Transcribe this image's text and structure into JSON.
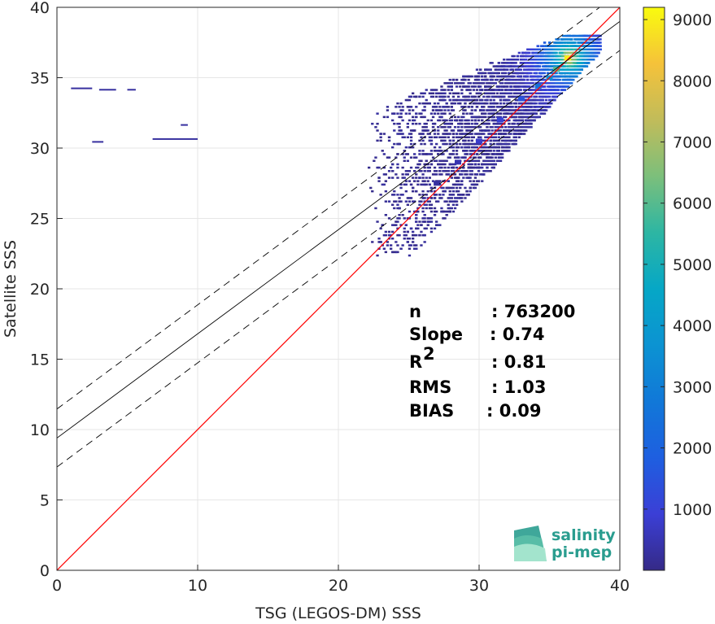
{
  "chart_data": {
    "type": "heatmap",
    "title": "",
    "xlabel": "TSG (LEGOS-DM) SSS",
    "ylabel": "Satellite SSS",
    "xlim": [
      0,
      40
    ],
    "ylim": [
      0,
      40
    ],
    "xticks": [
      "0",
      "10",
      "20",
      "30",
      "40"
    ],
    "yticks": [
      "0",
      "5",
      "10",
      "15",
      "20",
      "25",
      "30",
      "35",
      "40"
    ],
    "grid": true,
    "colorbar": {
      "range": [
        0,
        9200
      ],
      "ticks": [
        "1000",
        "2000",
        "3000",
        "4000",
        "5000",
        "6000",
        "7000",
        "8000",
        "9000"
      ],
      "colormap": "parula"
    },
    "reference_line": {
      "name": "1:1",
      "color": "#ff0000",
      "slope": 1,
      "intercept": 0
    },
    "fit_line": {
      "slope": 0.74,
      "intercept": 9.4,
      "color": "#000000"
    },
    "fit_bounds": {
      "offset": 2.06,
      "style": "dashed",
      "color": "#000000"
    },
    "density_clusters": [
      {
        "x": 36.3,
        "y": 36.4,
        "count": 9000
      },
      {
        "x": 35.5,
        "y": 35.6,
        "count": 6000
      },
      {
        "x": 35.0,
        "y": 35.0,
        "count": 3500
      },
      {
        "x": 34.2,
        "y": 34.4,
        "count": 2500
      },
      {
        "x": 33.0,
        "y": 33.5,
        "count": 1500
      },
      {
        "x": 31.5,
        "y": 32.0,
        "count": 1000
      },
      {
        "x": 30.0,
        "y": 30.5,
        "count": 800
      },
      {
        "x": 28.5,
        "y": 29.0,
        "count": 500
      },
      {
        "x": 27.0,
        "y": 27.5,
        "count": 300
      }
    ],
    "stats": [
      {
        "label": "n",
        "value": ": 763200"
      },
      {
        "label": "Slope",
        "value": ": 0.74"
      },
      {
        "label": "R",
        "sup": "2",
        "value": ": 0.81"
      },
      {
        "label": "RMS",
        "value": ": 1.03"
      },
      {
        "label": "BIAS",
        "value": ": 0.09"
      }
    ]
  },
  "logo": {
    "line1": "salinity",
    "line2": "pi-mep"
  }
}
